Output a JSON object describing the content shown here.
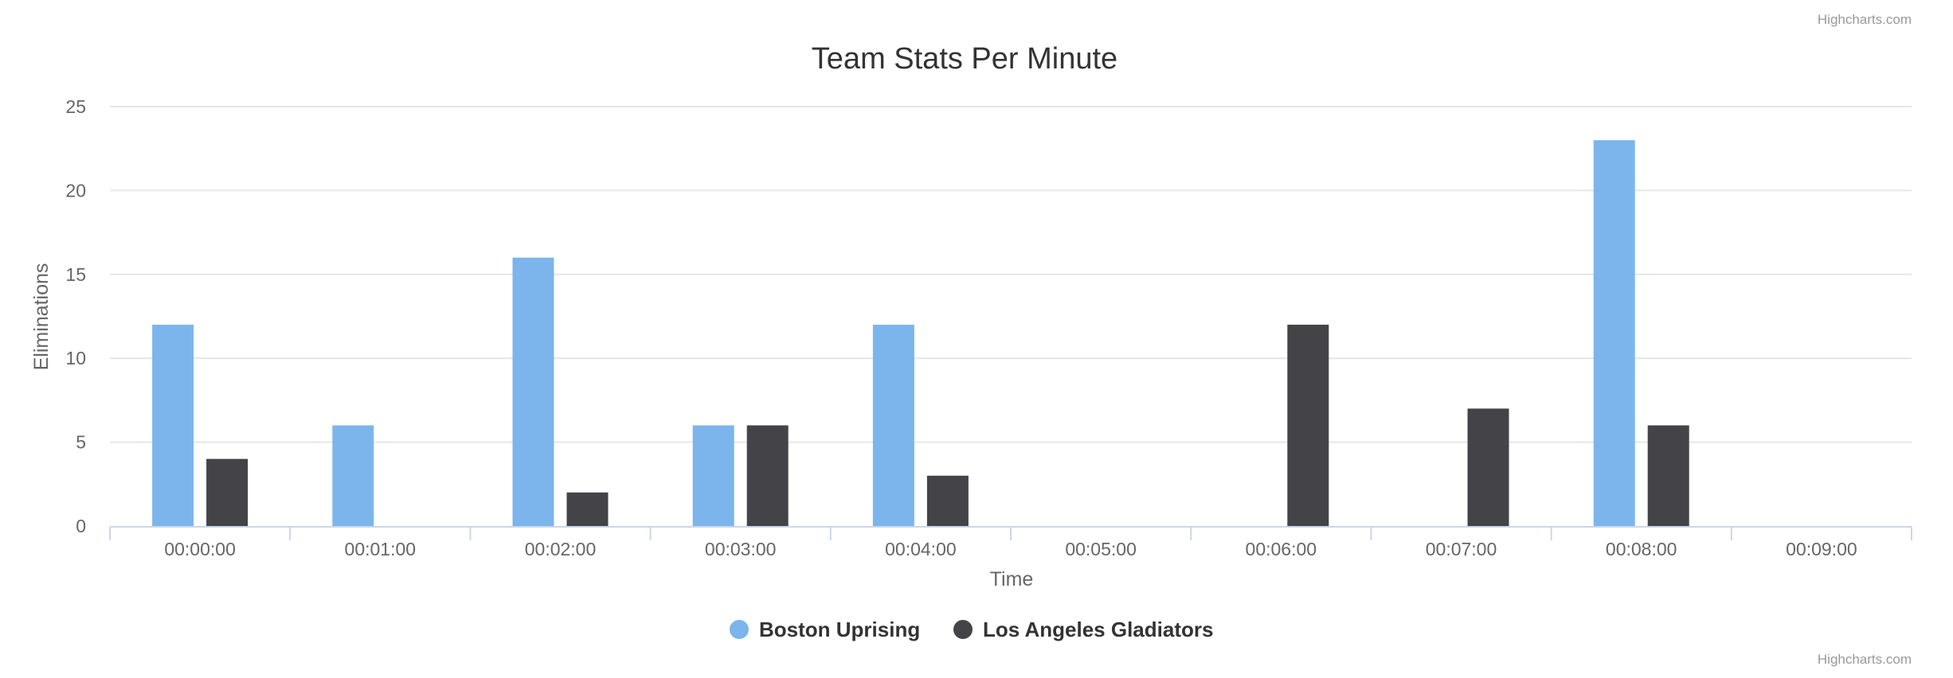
{
  "credits": {
    "top": "Highcharts.com",
    "bottom": "Highcharts.com"
  },
  "chart_data": {
    "type": "bar",
    "title": "Team Stats Per Minute",
    "xlabel": "Time",
    "ylabel": "Eliminations",
    "categories": [
      "00:00:00",
      "00:01:00",
      "00:02:00",
      "00:03:00",
      "00:04:00",
      "00:05:00",
      "00:06:00",
      "00:07:00",
      "00:08:00",
      "00:09:00"
    ],
    "yticks": [
      0,
      5,
      10,
      15,
      20,
      25
    ],
    "ylim": [
      0,
      25
    ],
    "grid": true,
    "legend_position": "bottom-center",
    "series": [
      {
        "name": "Boston Uprising",
        "color": "#7cb5ec",
        "values": [
          12,
          6,
          16,
          6,
          12,
          0,
          0,
          0,
          23,
          0
        ]
      },
      {
        "name": "Los Angeles Gladiators",
        "color": "#434348",
        "values": [
          4,
          0,
          2,
          6,
          3,
          0,
          12,
          7,
          6,
          0
        ]
      }
    ]
  }
}
